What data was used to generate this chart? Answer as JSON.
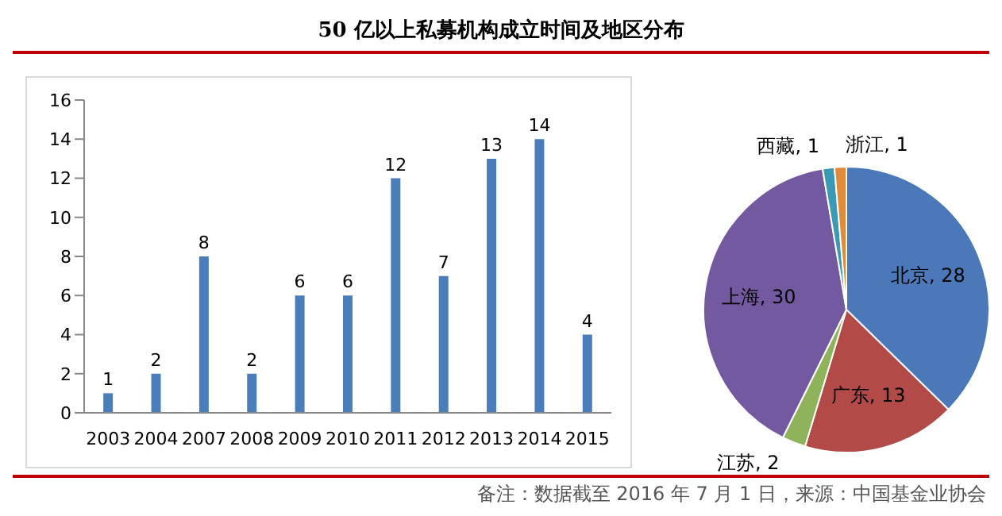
{
  "chart_data": [
    {
      "type": "bar",
      "title": "50 亿以上私募机构成立时间及地区分布",
      "categories": [
        "2003",
        "2004",
        "2007",
        "2008",
        "2009",
        "2010",
        "2011",
        "2012",
        "2013",
        "2014",
        "2015"
      ],
      "values": [
        1,
        2,
        8,
        2,
        6,
        6,
        12,
        7,
        13,
        14,
        4
      ],
      "color": "#4a7ebb",
      "ylim": [
        0,
        16
      ],
      "yticks": [
        0,
        2,
        4,
        6,
        8,
        10,
        12,
        14,
        16
      ],
      "grid": false,
      "data_labels": true,
      "legend": false
    },
    {
      "type": "pie",
      "categories": [
        "北京",
        "广东",
        "江苏",
        "上海",
        "西藏",
        "浙江"
      ],
      "values": [
        28,
        13,
        2,
        30,
        1,
        1
      ],
      "colors": [
        "#4a78b8",
        "#b24a47",
        "#8fb35a",
        "#7359a0",
        "#3a9ab3",
        "#e08a3a"
      ],
      "data_labels": true,
      "value_labels": [
        ", 28",
        ", 13",
        ", 2",
        ", 30",
        ", 1",
        ", 1"
      ],
      "legend": false,
      "annotations": [
        "备注：数据截至 2016 年 7 月 1 日，来源：中国基金业协会"
      ]
    }
  ]
}
